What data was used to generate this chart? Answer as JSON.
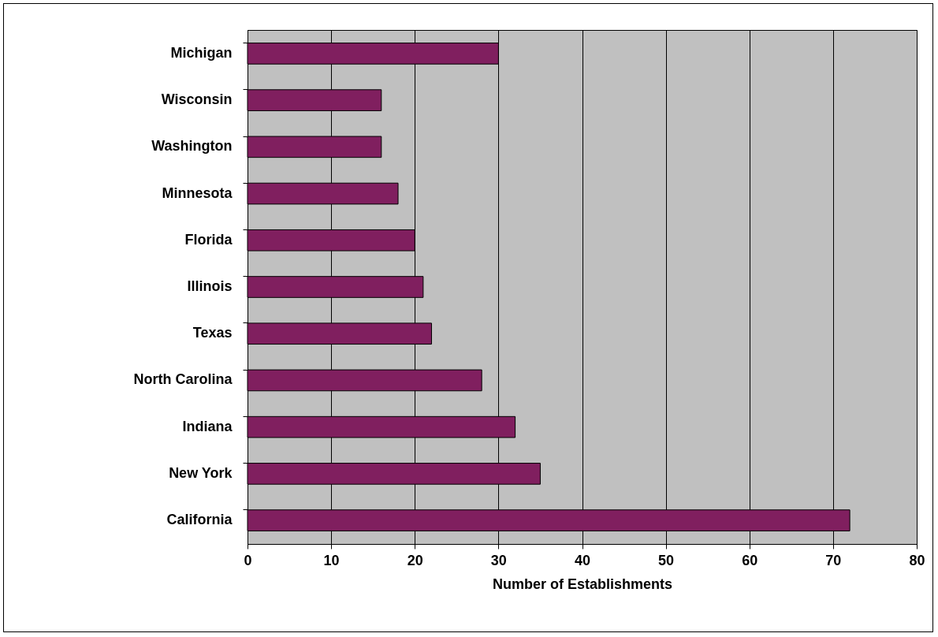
{
  "chart_data": {
    "type": "bar",
    "orientation": "horizontal",
    "xlabel": "Number of Establishments",
    "categories": [
      "Michigan",
      "Wisconsin",
      "Washington",
      "Minnesota",
      "Florida",
      "Illinois",
      "Texas",
      "North Carolina",
      "Indiana",
      "New York",
      "California"
    ],
    "values": [
      30,
      16,
      16,
      18,
      20,
      21,
      22,
      28,
      32,
      35,
      72
    ],
    "color": "#801f5f",
    "xlim": [
      0,
      80
    ],
    "xticks": [
      0,
      10,
      20,
      30,
      40,
      50,
      60,
      70,
      80
    ],
    "grid": "x"
  }
}
